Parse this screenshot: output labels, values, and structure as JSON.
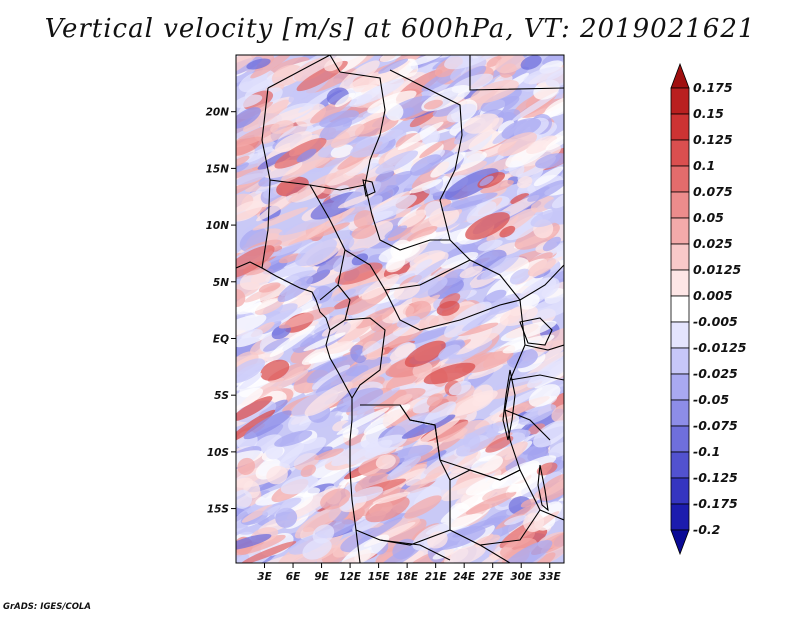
{
  "title": "Vertical velocity [m/s] at 600hPa, VT: 2019021621",
  "credit": "GrADS: IGES/COLA",
  "lat_labels": [
    "20N",
    "15N",
    "10N",
    "5N",
    "EQ",
    "5S",
    "10S",
    "15S"
  ],
  "lat_values": [
    20,
    15,
    10,
    5,
    0,
    -5,
    -10,
    -15
  ],
  "lon_labels": [
    "3E",
    "6E",
    "9E",
    "12E",
    "15E",
    "18E",
    "21E",
    "24E",
    "27E",
    "30E",
    "33E"
  ],
  "lon_values": [
    3,
    6,
    9,
    12,
    15,
    18,
    21,
    24,
    27,
    30,
    33
  ],
  "map_extent": {
    "lon": [
      0,
      34.5
    ],
    "lat": [
      -19.8,
      25
    ]
  },
  "colorbar": {
    "levels": [
      "0.175",
      "0.15",
      "0.125",
      "0.1",
      "0.075",
      "0.05",
      "0.025",
      "0.0125",
      "0.005",
      "-0.005",
      "-0.0125",
      "-0.025",
      "-0.05",
      "-0.075",
      "-0.1",
      "-0.125",
      "-0.175",
      "-0.2"
    ],
    "colors": [
      "#a01010",
      "#b92020",
      "#cd3333",
      "#da4f4f",
      "#e36c6c",
      "#ec8c8c",
      "#f3aaaa",
      "#f8c9c9",
      "#fde6e6",
      "#ffffff",
      "#e4e4fd",
      "#c7c7f8",
      "#a9a9f1",
      "#8d8de8",
      "#6f6fdc",
      "#5252cf",
      "#3535c0",
      "#1c1cae",
      "#0a0a96"
    ]
  }
}
